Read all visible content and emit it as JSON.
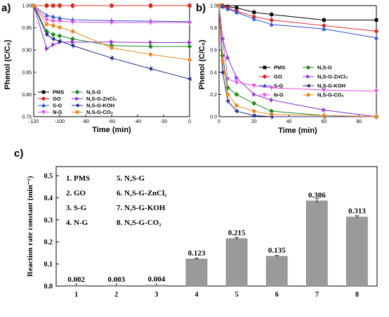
{
  "colors": {
    "PMS": "#000000",
    "GO": "#e3261f",
    "S-G": "#2a4fd6",
    "N-G": "#e64ce6",
    "N,S-G": "#1e8a1e",
    "N,S-G-ZnCl2": "#8e2bd6",
    "N,S-G-KOH": "#1f2a8c",
    "N,S-G-CO2": "#ef8a1f",
    "bar": "#9a9a9a"
  },
  "chart_data": [
    {
      "panel": "a)",
      "type": "line",
      "xlabel": "Time (min)",
      "ylabel": "Phenol (C/C₀)",
      "xlim": [
        -120,
        0
      ],
      "ylim": [
        0.75,
        1.0
      ],
      "xticks": [
        "-120",
        "-100",
        "-80",
        "-60",
        "-40",
        "-20",
        "0"
      ],
      "yticks": [
        "0.75",
        "0.80",
        "0.85",
        "0.90",
        "0.95",
        "1.00"
      ],
      "legend_position": "bottom-left",
      "legend": [
        "PMS",
        "N,S-G",
        "GO",
        "N,S-G-ZnCl₂",
        "S-G",
        "N,S-G-KOH",
        "N-G",
        "N,S-G-CO₂"
      ],
      "series": [
        {
          "name": "PMS",
          "key": "PMS",
          "marker": "square",
          "x": [
            -120,
            -110,
            -105,
            -100,
            -90,
            -60,
            -30,
            0
          ],
          "y": [
            1.0,
            1.0,
            1.0,
            1.0,
            1.0,
            1.0,
            1.0,
            1.0
          ]
        },
        {
          "name": "GO",
          "key": "GO",
          "marker": "circle",
          "x": [
            -120,
            -110,
            -105,
            -100,
            -90,
            -60,
            -30,
            0
          ],
          "y": [
            1.0,
            1.0,
            1.0,
            1.0,
            1.0,
            1.0,
            1.0,
            1.0
          ]
        },
        {
          "name": "S-G",
          "key": "S-G",
          "marker": "triangle-up",
          "x": [
            -120,
            -110,
            -105,
            -100,
            -90,
            -60,
            -30,
            0
          ],
          "y": [
            1.0,
            0.978,
            0.975,
            0.972,
            0.968,
            0.966,
            0.965,
            0.964
          ]
        },
        {
          "name": "N-G",
          "key": "N-G",
          "marker": "triangle-down",
          "x": [
            -120,
            -110,
            -105,
            -100,
            -90,
            -60,
            -30,
            0
          ],
          "y": [
            1.0,
            0.968,
            0.965,
            0.965,
            0.963,
            0.962,
            0.962,
            0.962
          ]
        },
        {
          "name": "N,S-G",
          "key": "N,S-G",
          "marker": "diamond",
          "x": [
            -120,
            -110,
            -105,
            -100,
            -90,
            -60,
            -30,
            0
          ],
          "y": [
            1.0,
            0.942,
            0.935,
            0.932,
            0.925,
            0.91,
            0.908,
            0.908
          ]
        },
        {
          "name": "N,S-G-ZnCl₂",
          "key": "N,S-G-ZnCl2",
          "marker": "triangle-right",
          "x": [
            -120,
            -110,
            -105,
            -100,
            -90,
            -60,
            -30,
            0
          ],
          "y": [
            1.0,
            0.903,
            0.912,
            0.918,
            0.918,
            0.918,
            0.917,
            0.917
          ]
        },
        {
          "name": "N,S-G-KOH",
          "key": "N,S-G-KOH",
          "marker": "triangle-left",
          "x": [
            -120,
            -110,
            -105,
            -100,
            -90,
            -60,
            -30,
            0
          ],
          "y": [
            1.0,
            0.935,
            0.925,
            0.92,
            0.91,
            0.882,
            0.858,
            0.835
          ]
        },
        {
          "name": "N,S-G-CO₂",
          "key": "N,S-G-CO2",
          "marker": "circle",
          "x": [
            -120,
            -110,
            -105,
            -100,
            -90,
            -60,
            -30,
            0
          ],
          "y": [
            1.0,
            0.958,
            0.955,
            0.951,
            0.942,
            0.905,
            0.89,
            0.878
          ]
        }
      ]
    },
    {
      "panel": "b)",
      "type": "line",
      "xlabel": "Time (min)",
      "ylabel": "Phenol (C/C₀)",
      "xlim": [
        0,
        90
      ],
      "ylim": [
        0.0,
        1.0
      ],
      "xticks": [
        "0",
        "20",
        "40",
        "60",
        "80"
      ],
      "yticks": [
        "0.0",
        "0.2",
        "0.4",
        "0.6",
        "0.8",
        "1.0"
      ],
      "legend_position": "bottom",
      "legend": [
        "PMS",
        "N,S-G",
        "GO",
        "N,S-G-ZnCl₂",
        "S-G",
        "N,S-G-KOH",
        "N-G",
        "N,S-G-CO₂"
      ],
      "series": [
        {
          "name": "PMS",
          "key": "PMS",
          "marker": "square",
          "x": [
            0,
            2,
            5,
            10,
            20,
            30,
            60,
            90
          ],
          "y": [
            1.0,
            1.0,
            0.99,
            0.98,
            0.94,
            0.92,
            0.87,
            0.87
          ]
        },
        {
          "name": "GO",
          "key": "GO",
          "marker": "circle",
          "x": [
            0,
            2,
            5,
            10,
            20,
            30,
            60,
            90
          ],
          "y": [
            1.0,
            1.0,
            0.98,
            0.95,
            0.9,
            0.87,
            0.82,
            0.77
          ]
        },
        {
          "name": "S-G",
          "key": "S-G",
          "marker": "triangle-up",
          "x": [
            0,
            2,
            5,
            10,
            20,
            30,
            60,
            90
          ],
          "y": [
            1.0,
            0.99,
            0.97,
            0.94,
            0.88,
            0.83,
            0.79,
            0.71
          ]
        },
        {
          "name": "N-G",
          "key": "N-G",
          "marker": "triangle-down",
          "x": [
            0,
            2,
            5,
            10,
            20,
            30,
            60,
            90
          ],
          "y": [
            1.0,
            0.7,
            0.34,
            0.31,
            0.28,
            0.26,
            0.24,
            0.23
          ]
        },
        {
          "name": "N,S-G",
          "key": "N,S-G",
          "marker": "diamond",
          "x": [
            0,
            2,
            5,
            10,
            20,
            30,
            60,
            90
          ],
          "y": [
            1.0,
            0.55,
            0.26,
            0.2,
            0.12,
            0.05,
            0.01,
            0.0
          ]
        },
        {
          "name": "N,S-G-ZnCl₂",
          "key": "N,S-G-ZnCl2",
          "marker": "triangle-right",
          "x": [
            0,
            2,
            5,
            10,
            20,
            30,
            60,
            90
          ],
          "y": [
            1.0,
            0.7,
            0.53,
            0.35,
            0.2,
            0.15,
            0.06,
            0.0
          ]
        },
        {
          "name": "N,S-G-KOH",
          "key": "N,S-G-KOH",
          "marker": "triangle-left",
          "x": [
            0,
            2,
            5,
            10,
            20,
            30,
            60,
            90
          ],
          "y": [
            1.0,
            0.4,
            0.14,
            0.05,
            0.01,
            0.0,
            0.0,
            0.0
          ]
        },
        {
          "name": "N,S-G-CO₂",
          "key": "N,S-G-CO2",
          "marker": "circle",
          "x": [
            0,
            2,
            5,
            10,
            20,
            30,
            60,
            90
          ],
          "y": [
            1.0,
            0.5,
            0.2,
            0.1,
            0.05,
            0.02,
            0.01,
            0.0
          ]
        }
      ]
    },
    {
      "panel": "c)",
      "type": "bar",
      "ylabel": "Reaction rate constant (min⁻¹)",
      "xlabel": "",
      "categories": [
        "1",
        "2",
        "3",
        "4",
        "5",
        "6",
        "7",
        "8"
      ],
      "values": [
        0.002,
        0.003,
        0.004,
        0.123,
        0.215,
        0.135,
        0.386,
        0.313
      ],
      "value_labels": [
        "0.002",
        "0.003",
        "0.004",
        "0.123",
        "0.215",
        "0.135",
        "0.386",
        "0.313"
      ],
      "errors": [
        0.0,
        0.0,
        0.0,
        0.004,
        0.005,
        0.004,
        0.01,
        0.006
      ],
      "ylim": [
        0.0,
        0.5
      ],
      "yticks": [
        "0.0",
        "0.1",
        "0.2",
        "0.3",
        "0.4",
        "0.5"
      ],
      "legend_position": "top-left",
      "legend_items": [
        "1. PMS",
        "2. GO",
        "3. S-G",
        "4. N-G",
        "5. N,S-G",
        "6. N,S-G-ZnCl₂",
        "7. N,S-G-KOH",
        "8. N,S-G-CO₂"
      ]
    }
  ]
}
